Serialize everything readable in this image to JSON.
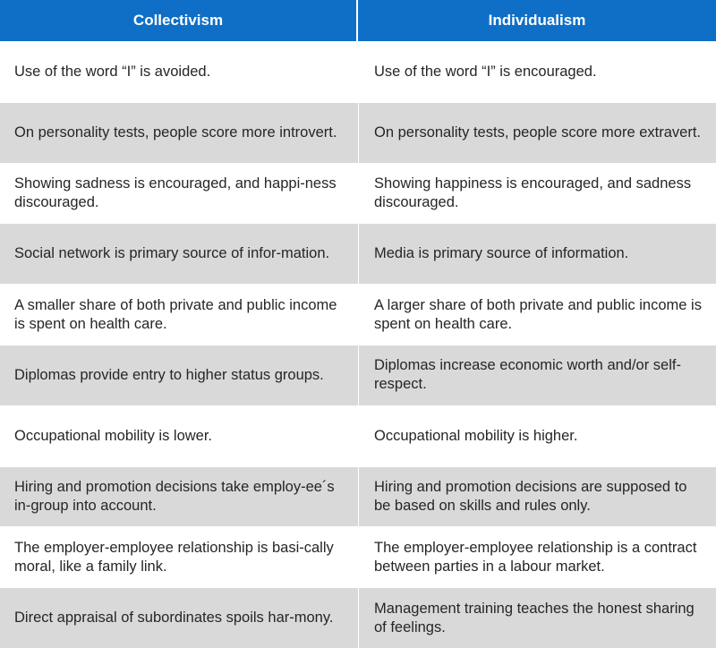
{
  "colors": {
    "header_bg": "#0f6fc6",
    "header_text": "#ffffff",
    "row_alt_bg": "#d9d9d9",
    "row_bg": "#ffffff",
    "body_text": "#262626"
  },
  "headers": {
    "collectivism": "Collectivism",
    "individualism": "Individualism"
  },
  "rows": [
    {
      "collectivism": "Use of the word “I” is avoided.",
      "individualism": "Use of the word “I” is encouraged."
    },
    {
      "collectivism": "On personality tests, people score more introvert.",
      "individualism": "On personality tests, people score more extravert."
    },
    {
      "collectivism": "Showing sadness is encouraged, and happi-ness discouraged.",
      "individualism": "Showing happiness is encouraged, and sadness discouraged."
    },
    {
      "collectivism": "Social network is primary source of infor-mation.",
      "individualism": "Media is primary source of information."
    },
    {
      "collectivism": "A smaller share of both private and public income is spent on health care.",
      "individualism": "A larger share of both private and public income is spent on health care."
    },
    {
      "collectivism": "Diplomas provide entry to higher status groups.",
      "individualism": "Diplomas increase economic worth and/or self-respect."
    },
    {
      "collectivism": "Occupational mobility is lower.",
      "individualism": "Occupational mobility is higher."
    },
    {
      "collectivism": "Hiring and promotion decisions take employ-ee´s in-group into account.",
      "individualism": "Hiring and promotion decisions are supposed to be based on skills and rules only."
    },
    {
      "collectivism": "The employer-employee relationship is basi-cally moral, like a family link.",
      "individualism": "The employer-employee relationship is a contract between parties in a labour market."
    },
    {
      "collectivism": "Direct appraisal of subordinates spoils har-mony.",
      "individualism": "Management training teaches the honest sharing of feelings."
    }
  ]
}
